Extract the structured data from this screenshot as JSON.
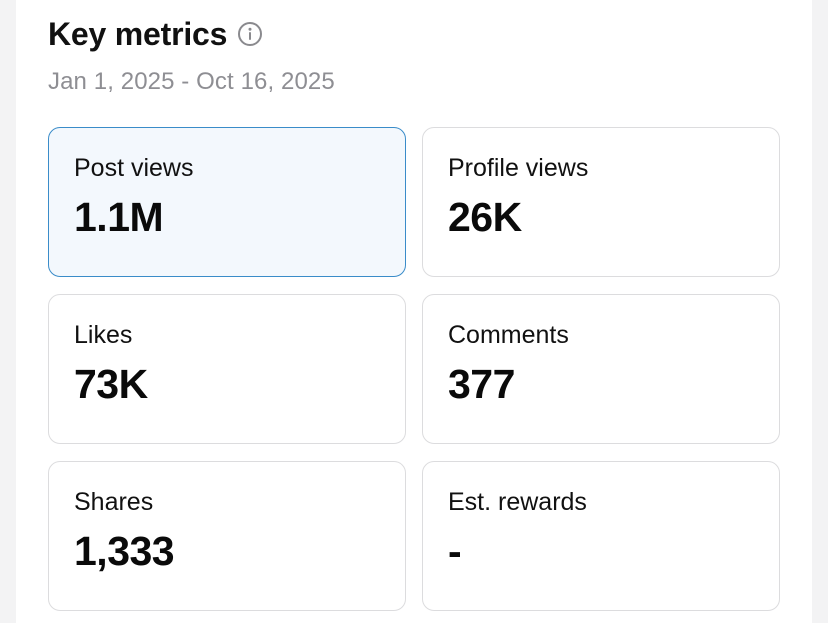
{
  "header": {
    "title": "Key metrics",
    "info_icon": "info-circle-icon",
    "date_range": "Jan 1, 2025 - Oct 16, 2025"
  },
  "colors": {
    "selected_border": "#3a8cc9",
    "selected_background": "#f3f8fd",
    "subtitle": "#8e8e93"
  },
  "metrics": [
    {
      "label": "Post views",
      "value": "1.1M",
      "selected": true
    },
    {
      "label": "Profile views",
      "value": "26K",
      "selected": false
    },
    {
      "label": "Likes",
      "value": "73K",
      "selected": false
    },
    {
      "label": "Comments",
      "value": "377",
      "selected": false
    },
    {
      "label": "Shares",
      "value": "1,333",
      "selected": false
    },
    {
      "label": "Est. rewards",
      "value": "-",
      "selected": false
    }
  ]
}
